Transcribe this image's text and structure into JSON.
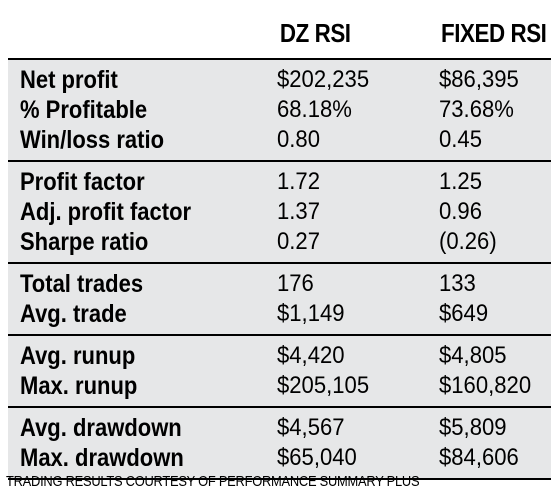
{
  "table": {
    "headers": {
      "dz": "DZ RSI",
      "fixed": "FIXED RSI"
    },
    "groups": [
      {
        "rows": [
          {
            "label": "Net profit",
            "dz": "$202,235",
            "fixed": "$86,395"
          },
          {
            "label": "% Profitable",
            "dz": "68.18%",
            "fixed": "73.68%"
          },
          {
            "label": "Win/loss ratio",
            "dz": "0.80",
            "fixed": "0.45"
          }
        ]
      },
      {
        "rows": [
          {
            "label": "Profit factor",
            "dz": "1.72",
            "fixed": "1.25"
          },
          {
            "label": "Adj. profit factor",
            "dz": "1.37",
            "fixed": "0.96"
          },
          {
            "label": "Sharpe ratio",
            "dz": "0.27",
            "fixed": "(0.26)"
          }
        ]
      },
      {
        "rows": [
          {
            "label": "Total trades",
            "dz": "176",
            "fixed": "133"
          },
          {
            "label": "Avg. trade",
            "dz": "$1,149",
            "fixed": "$649"
          }
        ]
      },
      {
        "rows": [
          {
            "label": "Avg. runup",
            "dz": "$4,420",
            "fixed": "$4,805"
          },
          {
            "label": "Max. runup",
            "dz": "$205,105",
            "fixed": "$160,820"
          }
        ]
      },
      {
        "rows": [
          {
            "label": "Avg. drawdown",
            "dz": "$4,567",
            "fixed": "$5,809"
          },
          {
            "label": "Max. drawdown",
            "dz": "$65,040",
            "fixed": "$84,606"
          }
        ]
      }
    ]
  },
  "footer": "TRADING RESULTS COURTESY OF PERFORMANCE SUMMARY PLUS"
}
